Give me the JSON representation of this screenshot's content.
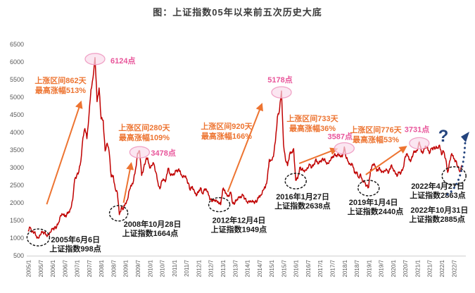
{
  "title": "图：上证指数05年以来前五次历史大底",
  "colors": {
    "line": "#C00000",
    "rally": "#ED7431",
    "peak_text": "#E8559A",
    "peak_fill": "#FADCEB",
    "peak_stroke": "#F0A2C6",
    "future": "#24447E",
    "axis_text": "#595959",
    "title_text": "#3B3B3B"
  },
  "chart_data": {
    "type": "line",
    "title": "图：上证指数05年以来前五次历史大底",
    "xlabel": "",
    "ylabel": "",
    "ylim": [
      500,
      6500
    ],
    "grid": false,
    "legend": "none",
    "y_ticks": [
      6500,
      6000,
      5500,
      5000,
      4500,
      4000,
      3500,
      3000,
      2500,
      2000,
      1500,
      1000,
      500
    ],
    "x_ticks": [
      "2005/1",
      "2005/7",
      "2006/1",
      "2006/7",
      "2007/1",
      "2007/7",
      "2008/1",
      "2008/7",
      "2009/1",
      "2009/7",
      "2010/1",
      "2010/7",
      "2011/1",
      "2011/7",
      "2012/1",
      "2012/7",
      "2013/1",
      "2013/7",
      "2014/1",
      "2014/7",
      "2015/1",
      "2015/7",
      "2016/1",
      "2016/7",
      "2017/1",
      "2017/7",
      "2018/1",
      "2018/7",
      "2019/1",
      "2019/7",
      "2020/1",
      "2020/7",
      "2021/1",
      "2021/7",
      "2022/1",
      "2022/7"
    ],
    "series": [
      {
        "name": "上证指数",
        "start": "2005/1",
        "frequency": "monthly",
        "values": [
          1191,
          1306,
          1181,
          1159,
          1060,
          998,
          1084,
          1163,
          1155,
          1092,
          1099,
          1161,
          1258,
          1299,
          1298,
          1440,
          1641,
          1672,
          1613,
          1658,
          1752,
          1837,
          2099,
          2675,
          2786,
          2881,
          3184,
          3841,
          4109,
          3821,
          4471,
          5218,
          5552,
          6124,
          4872,
          5262,
          4383,
          4348,
          3472,
          3693,
          3433,
          2736,
          2775,
          2397,
          2294,
          1664,
          1871,
          1821,
          1991,
          2083,
          2373,
          2477,
          2633,
          2959,
          3412,
          3478,
          2779,
          2995,
          3195,
          3277,
          2989,
          3051,
          3109,
          2871,
          2592,
          2398,
          2638,
          2639,
          2656,
          2979,
          2820,
          2808,
          2790,
          2905,
          2928,
          2911,
          2743,
          2762,
          2701,
          2567,
          2359,
          2468,
          2333,
          2199,
          2293,
          2428,
          2262,
          2396,
          2372,
          2225,
          2103,
          2047,
          2086,
          2068,
          1980,
          1949,
          2385,
          2365,
          2236,
          2177,
          2300,
          1979,
          1993,
          2098,
          2174,
          2141,
          2220,
          2116,
          2033,
          2056,
          2033,
          2026,
          2039,
          2048,
          2201,
          2217,
          2363,
          2420,
          2682,
          3235,
          3210,
          3310,
          3748,
          4441,
          4612,
          5178,
          3664,
          3206,
          3053,
          3383,
          3445,
          3539,
          2638,
          2688,
          3004,
          2938,
          2917,
          2930,
          2979,
          3085,
          3005,
          3100,
          3250,
          3104,
          3159,
          3242,
          3223,
          3155,
          3117,
          3192,
          3273,
          3361,
          3349,
          3393,
          3317,
          3307,
          3587,
          3259,
          3169,
          3082,
          3095,
          2847,
          2876,
          2725,
          2821,
          2603,
          2588,
          2494,
          2440,
          2941,
          3091,
          3078,
          2898,
          2979,
          2933,
          2886,
          2905,
          2929,
          2872,
          3050,
          2977,
          2880,
          2750,
          2860,
          2852,
          2985,
          3310,
          3396,
          3218,
          3225,
          3392,
          3473,
          3483,
          3731,
          3442,
          3447,
          3615,
          3591,
          3397,
          3544,
          3568,
          3547,
          3564,
          3640,
          3361,
          3462,
          3252,
          2863,
          3186,
          3399,
          3253,
          3202,
          3024,
          2885,
          3070
        ]
      }
    ],
    "peaks": [
      {
        "label": "6124点",
        "month": "2007/10",
        "value": 6124
      },
      {
        "label": "3478点",
        "month": "2009/8",
        "value": 3478
      },
      {
        "label": "5178点",
        "month": "2015/6",
        "value": 5178
      },
      {
        "label": "3587点",
        "month": "2018/1",
        "value": 3587
      },
      {
        "label": "3731点",
        "month": "2021/2",
        "value": 3731
      }
    ],
    "bottoms": [
      {
        "date": "2005年6月6日",
        "label": "上证指数998点",
        "month": "2005/6",
        "value": 998
      },
      {
        "date": "2008年10月28日",
        "label": "上证指数1664点",
        "month": "2008/10",
        "value": 1664
      },
      {
        "date": "2012年12月4日",
        "label": "上证指数1949点",
        "month": "2012/12",
        "value": 1949
      },
      {
        "date": "2016年1月27日",
        "label": "上证指数2638点",
        "month": "2016/1",
        "value": 2638
      },
      {
        "date": "2019年1月4日",
        "label": "上证指数2440点",
        "month": "2019/1",
        "value": 2440
      },
      {
        "date": "2022年4月27日",
        "label": "上证指数2863点",
        "month": "2022/4",
        "value": 2863
      },
      {
        "date": "2022年10月31日",
        "label": "上证指数2885点",
        "month": "2022/10",
        "value": 2885
      }
    ],
    "rallies": [
      {
        "line1": "上涨区间862天",
        "line2": "最高涨幅513%",
        "from_month": "2005/6",
        "to_month": "2007/10"
      },
      {
        "line1": "上涨区间280天",
        "line2": "最高涨幅109%",
        "from_month": "2008/10",
        "to_month": "2009/8"
      },
      {
        "line1": "上涨区间920天",
        "line2": "最高涨幅166%",
        "from_month": "2012/12",
        "to_month": "2015/6"
      },
      {
        "line1": "上涨区间733天",
        "line2": "最高涨幅36%",
        "from_month": "2016/1",
        "to_month": "2018/1"
      },
      {
        "line1": "上涨区间776天",
        "line2": "最高涨幅53%",
        "from_month": "2019/1",
        "to_month": "2021/2"
      }
    ],
    "future_marker": {
      "symbol": "?"
    }
  }
}
